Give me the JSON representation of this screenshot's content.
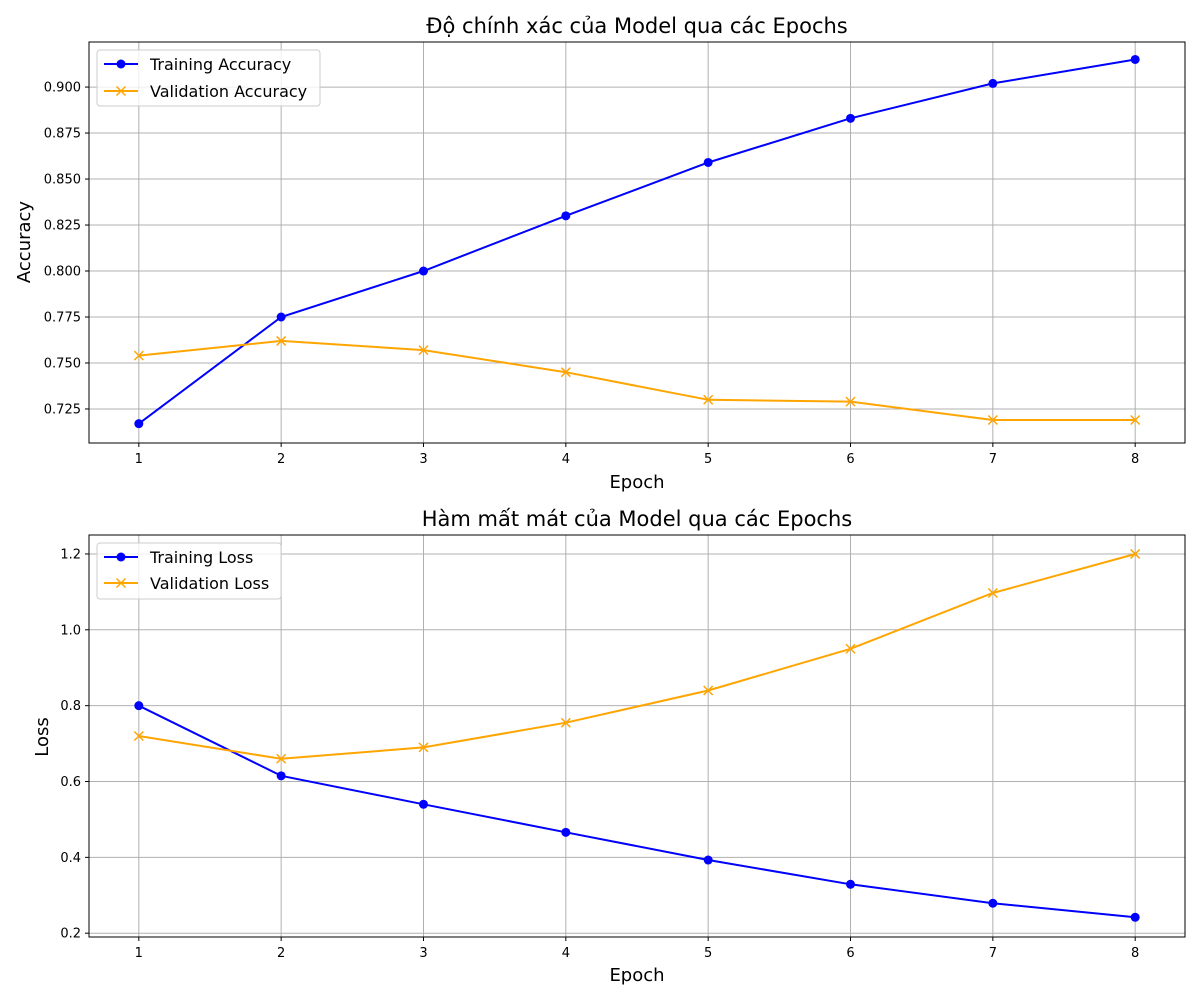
{
  "chart_data": [
    {
      "type": "line",
      "title": "Độ chính xác của Model qua các Epochs",
      "xlabel": "Epoch",
      "ylabel": "Accuracy",
      "x": [
        1,
        2,
        3,
        4,
        5,
        6,
        7,
        8
      ],
      "xlim": [
        0.65,
        8.35
      ],
      "ylim": [
        0.7065,
        0.9245
      ],
      "yticks": [
        0.725,
        0.75,
        0.775,
        0.8,
        0.825,
        0.85,
        0.875,
        0.9
      ],
      "ytick_labels": [
        "0.725",
        "0.750",
        "0.775",
        "0.800",
        "0.825",
        "0.850",
        "0.875",
        "0.900"
      ],
      "xticks": [
        1,
        2,
        3,
        4,
        5,
        6,
        7,
        8
      ],
      "grid": true,
      "legend_position": "top-left",
      "series": [
        {
          "name": "Training Accuracy",
          "color": "#0000ff",
          "marker": "circle",
          "values": [
            0.717,
            0.775,
            0.8,
            0.83,
            0.859,
            0.883,
            0.902,
            0.915
          ]
        },
        {
          "name": "Validation Accuracy",
          "color": "#ffa500",
          "marker": "x",
          "values": [
            0.754,
            0.762,
            0.757,
            0.745,
            0.73,
            0.729,
            0.719,
            0.719
          ]
        }
      ]
    },
    {
      "type": "line",
      "title": "Hàm mất mát của Model qua các Epochs",
      "xlabel": "Epoch",
      "ylabel": "Loss",
      "x": [
        1,
        2,
        3,
        4,
        5,
        6,
        7,
        8
      ],
      "xlim": [
        0.65,
        8.35
      ],
      "ylim": [
        0.19,
        1.25
      ],
      "yticks": [
        0.2,
        0.4,
        0.6,
        0.8,
        1.0,
        1.2
      ],
      "ytick_labels": [
        "0.2",
        "0.4",
        "0.6",
        "0.8",
        "1.0",
        "1.2"
      ],
      "xticks": [
        1,
        2,
        3,
        4,
        5,
        6,
        7,
        8
      ],
      "grid": true,
      "legend_position": "top-left",
      "series": [
        {
          "name": "Training Loss",
          "color": "#0000ff",
          "marker": "circle",
          "values": [
            0.8,
            0.615,
            0.54,
            0.466,
            0.393,
            0.329,
            0.279,
            0.242
          ]
        },
        {
          "name": "Validation Loss",
          "color": "#ffa500",
          "marker": "x",
          "values": [
            0.72,
            0.66,
            0.69,
            0.755,
            0.84,
            0.95,
            1.097,
            1.2
          ]
        }
      ]
    }
  ]
}
